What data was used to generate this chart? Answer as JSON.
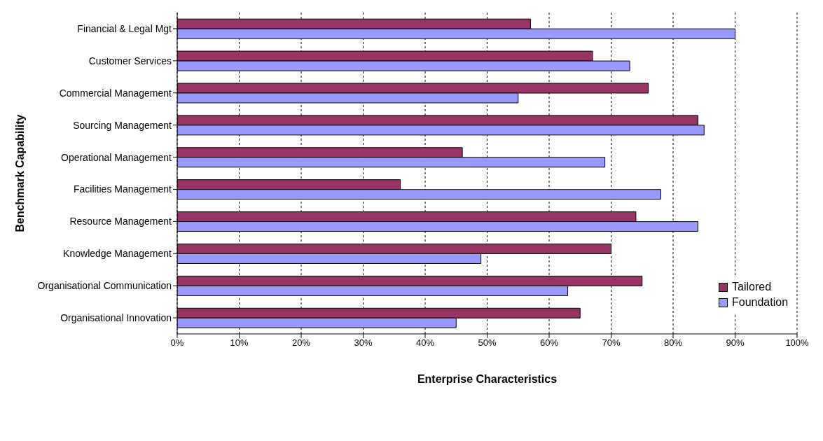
{
  "chart_data": {
    "type": "bar",
    "orientation": "horizontal",
    "xlabel": "Enterprise Characteristics",
    "ylabel": "Benchmark Capability",
    "categories": [
      "Financial & Legal Mgt",
      "Customer Services",
      "Commercial Management",
      "Sourcing Management",
      "Operational Management",
      "Facilities Management",
      "Resource Management",
      "Knowledge Management",
      "Organisational Communication",
      "Organisational Innovation"
    ],
    "series": [
      {
        "name": "Tailored",
        "color": "#993366",
        "values": [
          57,
          67,
          76,
          84,
          46,
          36,
          74,
          70,
          75,
          65
        ]
      },
      {
        "name": "Foundation",
        "color": "#9999ff",
        "values": [
          90,
          73,
          55,
          85,
          69,
          78,
          84,
          49,
          63,
          45
        ]
      }
    ],
    "xlim": [
      0,
      100
    ],
    "xticks": [
      {
        "value": 0,
        "label": "0%"
      },
      {
        "value": 10,
        "label": "10%"
      },
      {
        "value": 20,
        "label": "20%"
      },
      {
        "value": 30,
        "label": "30%"
      },
      {
        "value": 40,
        "label": "40%"
      },
      {
        "value": 50,
        "label": "50%"
      },
      {
        "value": 60,
        "label": "60%"
      },
      {
        "value": 70,
        "label": "70%"
      },
      {
        "value": 80,
        "label": "80%"
      },
      {
        "value": 90,
        "label": "90%"
      },
      {
        "value": 100,
        "label": "100%"
      }
    ],
    "grid": "x",
    "legend": "bottom right"
  }
}
